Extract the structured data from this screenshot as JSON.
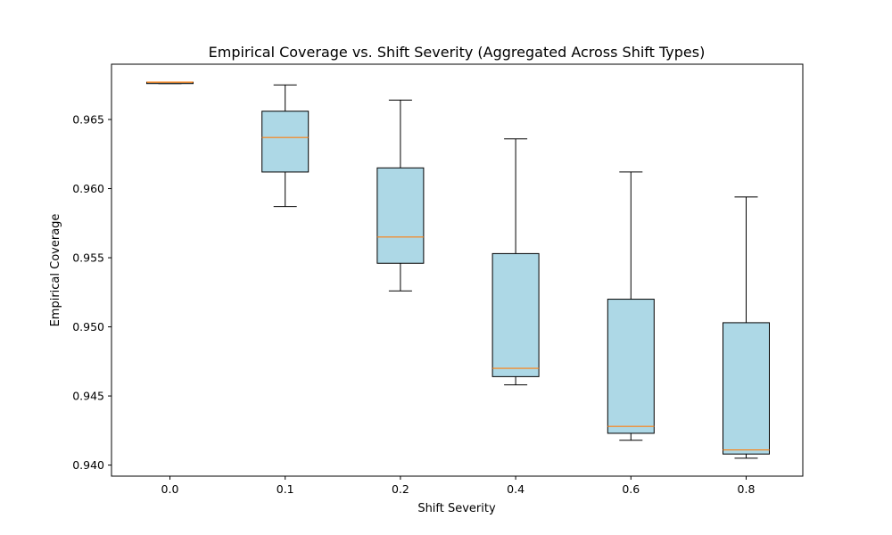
{
  "chart_data": {
    "type": "box",
    "title": "Empirical Coverage vs. Shift Severity (Aggregated Across Shift Types)",
    "xlabel": "Shift Severity",
    "ylabel": "Empirical Coverage",
    "categories": [
      "0.0",
      "0.1",
      "0.2",
      "0.4",
      "0.6",
      "0.8"
    ],
    "ylim": [
      0.9392,
      0.969
    ],
    "yticks": [
      0.94,
      0.945,
      0.95,
      0.955,
      0.96,
      0.965
    ],
    "ytick_labels": [
      "0.940",
      "0.945",
      "0.950",
      "0.955",
      "0.960",
      "0.965"
    ],
    "boxes": [
      {
        "category": "0.0",
        "whisker_low": 0.9676,
        "q1": 0.9676,
        "median": 0.9677,
        "q3": 0.9677,
        "whisker_high": 0.9677
      },
      {
        "category": "0.1",
        "whisker_low": 0.9587,
        "q1": 0.9612,
        "median": 0.9637,
        "q3": 0.9656,
        "whisker_high": 0.9675
      },
      {
        "category": "0.2",
        "whisker_low": 0.9526,
        "q1": 0.9546,
        "median": 0.9565,
        "q3": 0.9615,
        "whisker_high": 0.9664
      },
      {
        "category": "0.4",
        "whisker_low": 0.9458,
        "q1": 0.9464,
        "median": 0.947,
        "q3": 0.9553,
        "whisker_high": 0.9636
      },
      {
        "category": "0.6",
        "whisker_low": 0.9418,
        "q1": 0.9423,
        "median": 0.9428,
        "q3": 0.952,
        "whisker_high": 0.9612
      },
      {
        "category": "0.8",
        "whisker_low": 0.9405,
        "q1": 0.9408,
        "median": 0.9411,
        "q3": 0.9503,
        "whisker_high": 0.9594
      }
    ],
    "grid": false,
    "colors": {
      "box_fill": "#add8e6",
      "box_edge": "#000000",
      "median": "#ff7f0e",
      "axes": "#000000"
    }
  }
}
